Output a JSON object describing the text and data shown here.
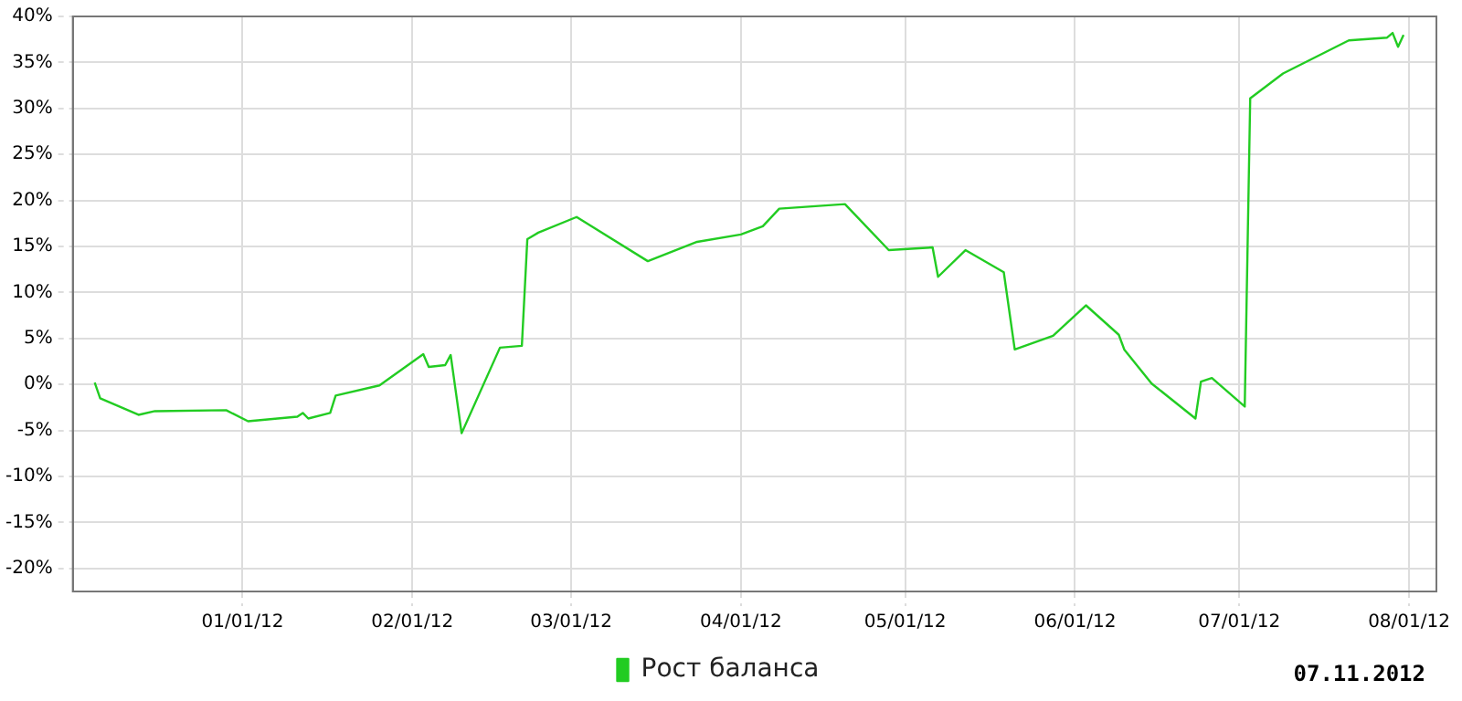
{
  "chart_data": {
    "type": "line",
    "x": [
      "2011-12-05",
      "2011-12-06",
      "2011-12-13",
      "2011-12-16",
      "2011-12-29",
      "2012-01-02",
      "2012-01-11",
      "2012-01-12",
      "2012-01-13",
      "2012-01-17",
      "2012-01-18",
      "2012-01-26",
      "2012-02-03",
      "2012-02-04",
      "2012-02-07",
      "2012-02-08",
      "2012-02-10",
      "2012-02-17",
      "2012-02-21",
      "2012-02-22",
      "2012-02-24",
      "2012-03-02",
      "2012-03-15",
      "2012-03-24",
      "2012-04-01",
      "2012-04-05",
      "2012-04-08",
      "2012-04-20",
      "2012-04-28",
      "2012-05-06",
      "2012-05-07",
      "2012-05-12",
      "2012-05-19",
      "2012-05-21",
      "2012-05-28",
      "2012-06-03",
      "2012-06-09",
      "2012-06-10",
      "2012-06-15",
      "2012-06-23",
      "2012-06-24",
      "2012-06-26",
      "2012-07-02",
      "2012-07-03",
      "2012-07-09",
      "2012-07-21",
      "2012-07-28",
      "2012-07-29",
      "2012-07-30",
      "2012-07-31"
    ],
    "series": [
      {
        "name": "Рост баланса",
        "color": "#22cc22",
        "values": [
          0.2,
          -1.5,
          -3.3,
          -2.9,
          -2.8,
          -4.0,
          -3.5,
          -3.1,
          -3.7,
          -3.1,
          -1.2,
          -0.1,
          3.3,
          1.9,
          2.1,
          3.2,
          -5.3,
          4.0,
          4.2,
          15.8,
          16.5,
          18.2,
          13.4,
          15.5,
          16.3,
          17.2,
          19.1,
          19.6,
          14.6,
          14.9,
          11.7,
          14.6,
          12.2,
          3.8,
          5.3,
          8.6,
          5.4,
          3.8,
          0.1,
          -3.7,
          0.3,
          0.7,
          -2.4,
          31.1,
          33.8,
          37.4,
          37.7,
          38.2,
          36.7,
          38.0
        ]
      }
    ],
    "xlim": [
      "2011-12-01",
      "2012-08-06"
    ],
    "xticks": [
      {
        "value": "2012-01-01",
        "label": "01/01/12"
      },
      {
        "value": "2012-02-01",
        "label": "02/01/12"
      },
      {
        "value": "2012-03-01",
        "label": "03/01/12"
      },
      {
        "value": "2012-04-01",
        "label": "04/01/12"
      },
      {
        "value": "2012-05-01",
        "label": "05/01/12"
      },
      {
        "value": "2012-06-01",
        "label": "06/01/12"
      },
      {
        "value": "2012-07-01",
        "label": "07/01/12"
      },
      {
        "value": "2012-08-01",
        "label": "08/01/12"
      }
    ],
    "ylim": [
      -22.5,
      40
    ],
    "yticks": [
      {
        "value": -20,
        "label": "-20%"
      },
      {
        "value": -15,
        "label": "-15%"
      },
      {
        "value": -10,
        "label": "-10%"
      },
      {
        "value": -5,
        "label": "-5%"
      },
      {
        "value": 0,
        "label": "0%"
      },
      {
        "value": 5,
        "label": "5%"
      },
      {
        "value": 10,
        "label": "10%"
      },
      {
        "value": 15,
        "label": "15%"
      },
      {
        "value": 20,
        "label": "20%"
      },
      {
        "value": 25,
        "label": "25%"
      },
      {
        "value": 30,
        "label": "30%"
      },
      {
        "value": 35,
        "label": "35%"
      },
      {
        "value": 40,
        "label": "40%"
      }
    ],
    "grid": true,
    "legend": "bottom",
    "marker": "none",
    "line_style": "solid",
    "annotations": [
      "07.11.2012"
    ]
  }
}
